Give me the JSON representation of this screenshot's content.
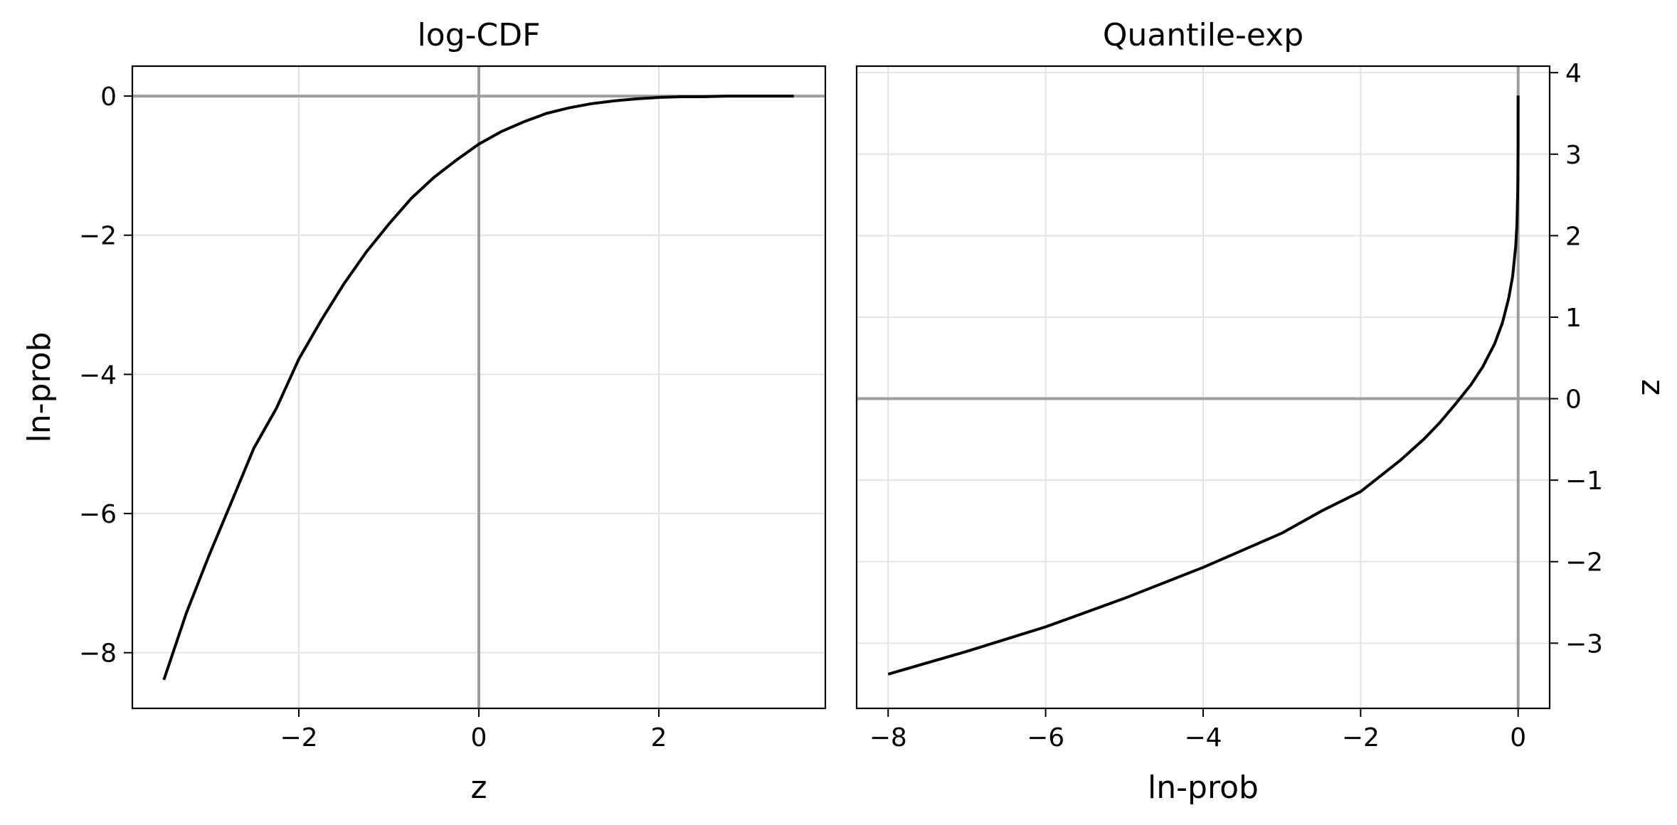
{
  "chart_data": [
    {
      "type": "line",
      "title": "log-CDF",
      "xlabel": "z",
      "ylabel": "ln-prob",
      "xlim": [
        -3.85,
        3.85
      ],
      "ylim": [
        -8.8,
        0.43
      ],
      "xticks": [
        -2,
        0,
        2
      ],
      "yticks": [
        0,
        -2,
        -4,
        -6,
        -8
      ],
      "grid": true,
      "reference_lines": {
        "x": 0,
        "y": 0
      },
      "series": [
        {
          "x": [
            -3.5,
            -3.25,
            -3.0,
            -2.75,
            -2.5,
            -2.25,
            -2.0,
            -1.75,
            -1.5,
            -1.25,
            -1.0,
            -0.75,
            -0.5,
            -0.25,
            0.0,
            0.25,
            0.5,
            0.75,
            1.0,
            1.25,
            1.5,
            1.75,
            2.0,
            2.25,
            2.5,
            2.75,
            3.0,
            3.25,
            3.5
          ],
          "y": [
            -8.39,
            -7.43,
            -6.61,
            -5.84,
            -5.06,
            -4.49,
            -3.78,
            -3.22,
            -2.7,
            -2.24,
            -1.84,
            -1.47,
            -1.17,
            -0.92,
            -0.69,
            -0.51,
            -0.37,
            -0.25,
            -0.17,
            -0.11,
            -0.07,
            -0.04,
            -0.02,
            -0.01,
            -0.01,
            0.0,
            0.0,
            0.0,
            0.0
          ],
          "color": "#000000"
        }
      ]
    },
    {
      "type": "line",
      "title": "Quantile-exp",
      "xlabel": "ln-prob",
      "ylabel": "z",
      "ylabel_position": "right",
      "xlim": [
        -8.4,
        0.4
      ],
      "ylim": [
        -3.8,
        4.08
      ],
      "xticks": [
        -8,
        -6,
        -4,
        -2,
        0
      ],
      "yticks": [
        4,
        3,
        2,
        1,
        0,
        -1,
        -2,
        -3
      ],
      "grid": true,
      "reference_lines": {
        "x": 0,
        "y": 0
      },
      "series": [
        {
          "x": [
            -8.0,
            -7.0,
            -6.0,
            -5.0,
            -4.0,
            -3.0,
            -2.5,
            -2.0,
            -1.5,
            -1.2,
            -1.0,
            -0.8,
            -0.6,
            -0.45,
            -0.3,
            -0.2,
            -0.12,
            -0.07,
            -0.03,
            -0.015,
            -0.005,
            -0.001,
            0.0
          ],
          "y": [
            -3.38,
            -3.1,
            -2.8,
            -2.45,
            -2.07,
            -1.65,
            -1.38,
            -1.14,
            -0.76,
            -0.5,
            -0.3,
            -0.07,
            0.17,
            0.39,
            0.67,
            0.93,
            1.23,
            1.5,
            1.88,
            2.15,
            2.57,
            3.09,
            3.72
          ],
          "color": "#000000"
        }
      ]
    }
  ]
}
